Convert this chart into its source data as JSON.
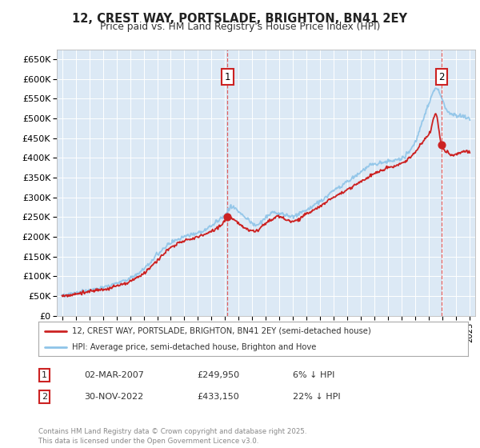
{
  "title": "12, CREST WAY, PORTSLADE, BRIGHTON, BN41 2EY",
  "subtitle": "Price paid vs. HM Land Registry's House Price Index (HPI)",
  "ytick_values": [
    0,
    50000,
    100000,
    150000,
    200000,
    250000,
    300000,
    350000,
    400000,
    450000,
    500000,
    550000,
    600000,
    650000
  ],
  "ylim": [
    0,
    675000
  ],
  "xlim_years": [
    1994.6,
    2025.4
  ],
  "xtick_years": [
    1995,
    1996,
    1997,
    1998,
    1999,
    2000,
    2001,
    2002,
    2003,
    2004,
    2005,
    2006,
    2007,
    2008,
    2009,
    2010,
    2011,
    2012,
    2013,
    2014,
    2015,
    2016,
    2017,
    2018,
    2019,
    2020,
    2021,
    2022,
    2023,
    2024,
    2025
  ],
  "hpi_line_color": "#8ec4e8",
  "price_line_color": "#cc2222",
  "vline_color": "#dd4444",
  "dot_color": "#cc2222",
  "plot_bg_color": "#dce9f5",
  "grid_color": "#ffffff",
  "legend_label_red": "12, CREST WAY, PORTSLADE, BRIGHTON, BN41 2EY (semi-detached house)",
  "legend_label_blue": "HPI: Average price, semi-detached house, Brighton and Hove",
  "sale1_year": 2007.17,
  "sale1_price": 249950,
  "sale2_year": 2022.92,
  "sale2_price": 433150,
  "footer": "Contains HM Land Registry data © Crown copyright and database right 2025.\nThis data is licensed under the Open Government Licence v3.0.",
  "table_rows": [
    {
      "num": "1",
      "date": "02-MAR-2007",
      "price": "£249,950",
      "hpi": "6% ↓ HPI"
    },
    {
      "num": "2",
      "date": "30-NOV-2022",
      "price": "£433,150",
      "hpi": "22% ↓ HPI"
    }
  ]
}
